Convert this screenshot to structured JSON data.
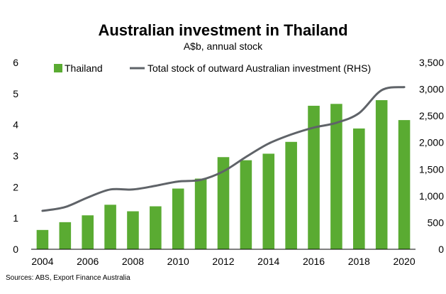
{
  "chart_data": {
    "type": "bar",
    "title": "Australian investment in Thailand",
    "subtitle": "A$b, annual stock",
    "source": "Sources: ABS, Export Finance Australia",
    "x": [
      2004,
      2005,
      2006,
      2007,
      2008,
      2009,
      2010,
      2011,
      2012,
      2013,
      2014,
      2015,
      2016,
      2017,
      2018,
      2019,
      2020
    ],
    "x_tick_labels": [
      "2004",
      "2006",
      "2008",
      "2010",
      "2012",
      "2014",
      "2016",
      "2018",
      "2020"
    ],
    "series": [
      {
        "name": "Thailand",
        "type": "bar",
        "axis": "left",
        "color": "#5aab32",
        "values": [
          0.62,
          0.87,
          1.09,
          1.43,
          1.22,
          1.38,
          1.95,
          2.27,
          2.96,
          2.86,
          3.07,
          3.45,
          4.61,
          4.67,
          3.88,
          4.79,
          4.15
        ]
      },
      {
        "name": "Total stock of outward Australian investment (RHS)",
        "type": "line",
        "axis": "right",
        "color": "#5f6368",
        "values": [
          720,
          790,
          970,
          1120,
          1120,
          1190,
          1270,
          1300,
          1460,
          1730,
          1980,
          2150,
          2280,
          2370,
          2550,
          2980,
          3040
        ]
      }
    ],
    "y_left": {
      "min": 0,
      "max": 6,
      "ticks": [
        "0",
        "1",
        "2",
        "3",
        "4",
        "5",
        "6"
      ]
    },
    "y_right": {
      "min": 0,
      "max": 3500,
      "ticks": [
        "0",
        "500",
        "1,000",
        "1,500",
        "2,000",
        "2,500",
        "3,000",
        "3,500"
      ]
    },
    "legend": "top-left",
    "grid": false
  }
}
